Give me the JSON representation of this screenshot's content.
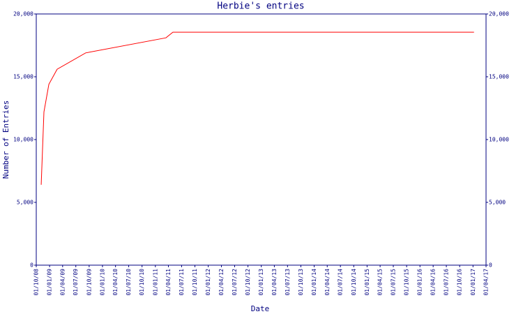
{
  "chart_data": {
    "type": "line",
    "title": "Herbie's entries",
    "x_label": "Date",
    "y_label": "Number of Entries",
    "x": [
      "2008-11-04",
      "2008-11-23",
      "2008-12-27",
      "2009-02-22",
      "2009-09-07",
      "2011-03-15",
      "2011-05-02",
      "2017-01-08"
    ],
    "series": [
      {
        "name": "Entries",
        "color": "#ff0000",
        "values": [
          6400,
          12200,
          14400,
          15600,
          16900,
          18100,
          18550,
          18550
        ]
      }
    ],
    "xlim": [
      "2008-10-01",
      "2017-04-01"
    ],
    "xticks": [
      {
        "value": "2008-10-01",
        "label": "01/10/08"
      },
      {
        "value": "2009-01-01",
        "label": "01/01/09"
      },
      {
        "value": "2009-04-01",
        "label": "01/04/09"
      },
      {
        "value": "2009-07-01",
        "label": "01/07/09"
      },
      {
        "value": "2009-10-01",
        "label": "01/10/09"
      },
      {
        "value": "2010-01-01",
        "label": "01/01/10"
      },
      {
        "value": "2010-04-01",
        "label": "01/04/10"
      },
      {
        "value": "2010-07-01",
        "label": "01/07/10"
      },
      {
        "value": "2010-10-01",
        "label": "01/10/10"
      },
      {
        "value": "2011-01-01",
        "label": "01/01/11"
      },
      {
        "value": "2011-04-01",
        "label": "01/04/11"
      },
      {
        "value": "2011-07-01",
        "label": "01/07/11"
      },
      {
        "value": "2011-10-01",
        "label": "01/10/11"
      },
      {
        "value": "2012-01-01",
        "label": "01/01/12"
      },
      {
        "value": "2012-04-01",
        "label": "01/04/12"
      },
      {
        "value": "2012-07-01",
        "label": "01/07/12"
      },
      {
        "value": "2012-10-01",
        "label": "01/10/12"
      },
      {
        "value": "2013-01-01",
        "label": "01/01/13"
      },
      {
        "value": "2013-04-01",
        "label": "01/04/13"
      },
      {
        "value": "2013-07-01",
        "label": "01/07/13"
      },
      {
        "value": "2013-10-01",
        "label": "01/10/13"
      },
      {
        "value": "2014-01-01",
        "label": "01/01/14"
      },
      {
        "value": "2014-04-01",
        "label": "01/04/14"
      },
      {
        "value": "2014-07-01",
        "label": "01/07/14"
      },
      {
        "value": "2014-10-01",
        "label": "01/10/14"
      },
      {
        "value": "2015-01-01",
        "label": "01/01/15"
      },
      {
        "value": "2015-04-01",
        "label": "01/04/15"
      },
      {
        "value": "2015-07-01",
        "label": "01/07/15"
      },
      {
        "value": "2015-10-01",
        "label": "01/10/15"
      },
      {
        "value": "2016-01-01",
        "label": "01/01/16"
      },
      {
        "value": "2016-04-01",
        "label": "01/04/16"
      },
      {
        "value": "2016-07-01",
        "label": "01/07/16"
      },
      {
        "value": "2016-10-01",
        "label": "01/10/16"
      },
      {
        "value": "2017-01-01",
        "label": "01/01/17"
      },
      {
        "value": "2017-04-01",
        "label": "01/04/17"
      }
    ],
    "ylim": [
      0,
      20000
    ],
    "yticks": [
      0,
      {
        "value": 5000,
        "label": "5,000"
      },
      {
        "value": 10000,
        "label": "10,000"
      },
      {
        "value": 15000,
        "label": "15,000"
      },
      {
        "value": 20000,
        "label": "20,000"
      }
    ],
    "y2lim": [
      0,
      20000
    ],
    "y2ticks": [
      0,
      {
        "value": 5000,
        "label": "5,000"
      },
      {
        "value": 10000,
        "label": "10,000"
      },
      {
        "value": 15000,
        "label": "15,000"
      },
      {
        "value": 20000,
        "label": "20,000"
      }
    ],
    "axis_color": "#000080",
    "grid": false
  }
}
